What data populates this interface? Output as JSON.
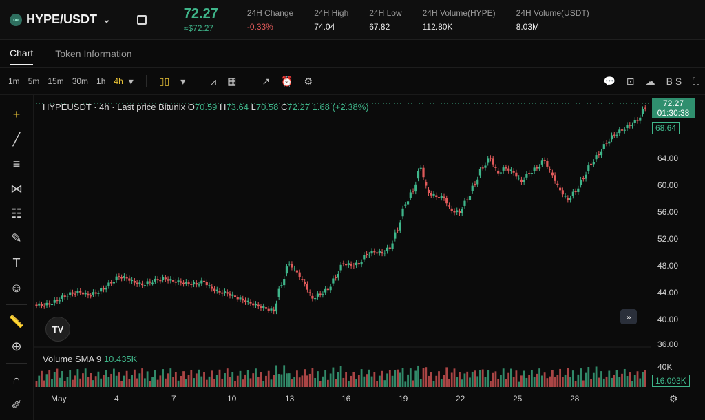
{
  "header": {
    "pair": "HYPE/USDT",
    "price": "72.27",
    "price_fiat": "≈$72.27",
    "stats": [
      {
        "label": "24H Change",
        "value": "-0.33%",
        "negative": true
      },
      {
        "label": "24H High",
        "value": "74.04"
      },
      {
        "label": "24H Low",
        "value": "67.82"
      },
      {
        "label": "24H Volume(HYPE)",
        "value": "112.80K"
      },
      {
        "label": "24H Volume(USDT)",
        "value": "8.03M"
      }
    ]
  },
  "tabs": [
    {
      "label": "Chart",
      "active": true
    },
    {
      "label": "Token Information",
      "active": false
    }
  ],
  "toolbar": {
    "timeframes": [
      "1m",
      "5m",
      "15m",
      "30m",
      "1h",
      "4h"
    ],
    "active_timeframe": "4h"
  },
  "legend": {
    "symbol": "HYPEUSDT · 4h · Last price Bitunix",
    "open_label": "O",
    "open": "70.59",
    "high_label": "H",
    "high": "73.64",
    "low_label": "L",
    "low": "70.58",
    "close_label": "C",
    "close": "72.27",
    "change": "1.68 (+2.38%)"
  },
  "volume": {
    "label": "Volume SMA 9",
    "value": "10.435K",
    "axis_label": "40K",
    "last_tag": "16.093K"
  },
  "price_axis": {
    "labels": [
      "64.00",
      "60.00",
      "56.00",
      "52.00",
      "48.00",
      "44.00",
      "40.00",
      "36.00"
    ],
    "last_price": "72.27",
    "countdown": "01:30:38",
    "tag_secondary": "68.64"
  },
  "x_axis": [
    "May",
    "4",
    "7",
    "10",
    "13",
    "16",
    "19",
    "22",
    "25",
    "28"
  ],
  "colors": {
    "up": "#3fb58a",
    "down": "#e05a5a",
    "accent": "#e6c036"
  },
  "chart_data": {
    "type": "candlestick",
    "x_labels": [
      "May",
      "4",
      "7",
      "10",
      "13",
      "16",
      "19",
      "22",
      "25",
      "28"
    ],
    "close_trace": [
      39.8,
      40.0,
      40.6,
      41.3,
      41.8,
      42.0,
      41.5,
      41.8,
      42.5,
      43.5,
      44.5,
      44.3,
      43.6,
      43.2,
      43.6,
      44.0,
      44.2,
      43.8,
      43.6,
      43.4,
      43.3,
      43.7,
      42.6,
      42.0,
      41.8,
      41.2,
      40.7,
      40.2,
      39.7,
      39.3,
      38.9,
      43.2,
      46.7,
      45.3,
      43.4,
      41.0,
      41.6,
      42.4,
      44.4,
      46.7,
      46.4,
      46.6,
      48.2,
      48.6,
      48.4,
      49.2,
      52.2,
      56.4,
      58.6,
      62.5,
      58.3,
      57.7,
      57.5,
      55.4,
      55.1,
      57.2,
      59.8,
      62.5,
      64.0,
      61.6,
      62.4,
      61.7,
      60.2,
      61.5,
      62.4,
      63.6,
      61.3,
      58.8,
      57.2,
      58.5,
      60.7,
      63.1,
      64.6,
      66.5,
      67.8,
      68.6,
      69.4,
      70.2,
      72.27
    ],
    "y_min": 36,
    "y_max": 72,
    "volume_max": 40000
  }
}
